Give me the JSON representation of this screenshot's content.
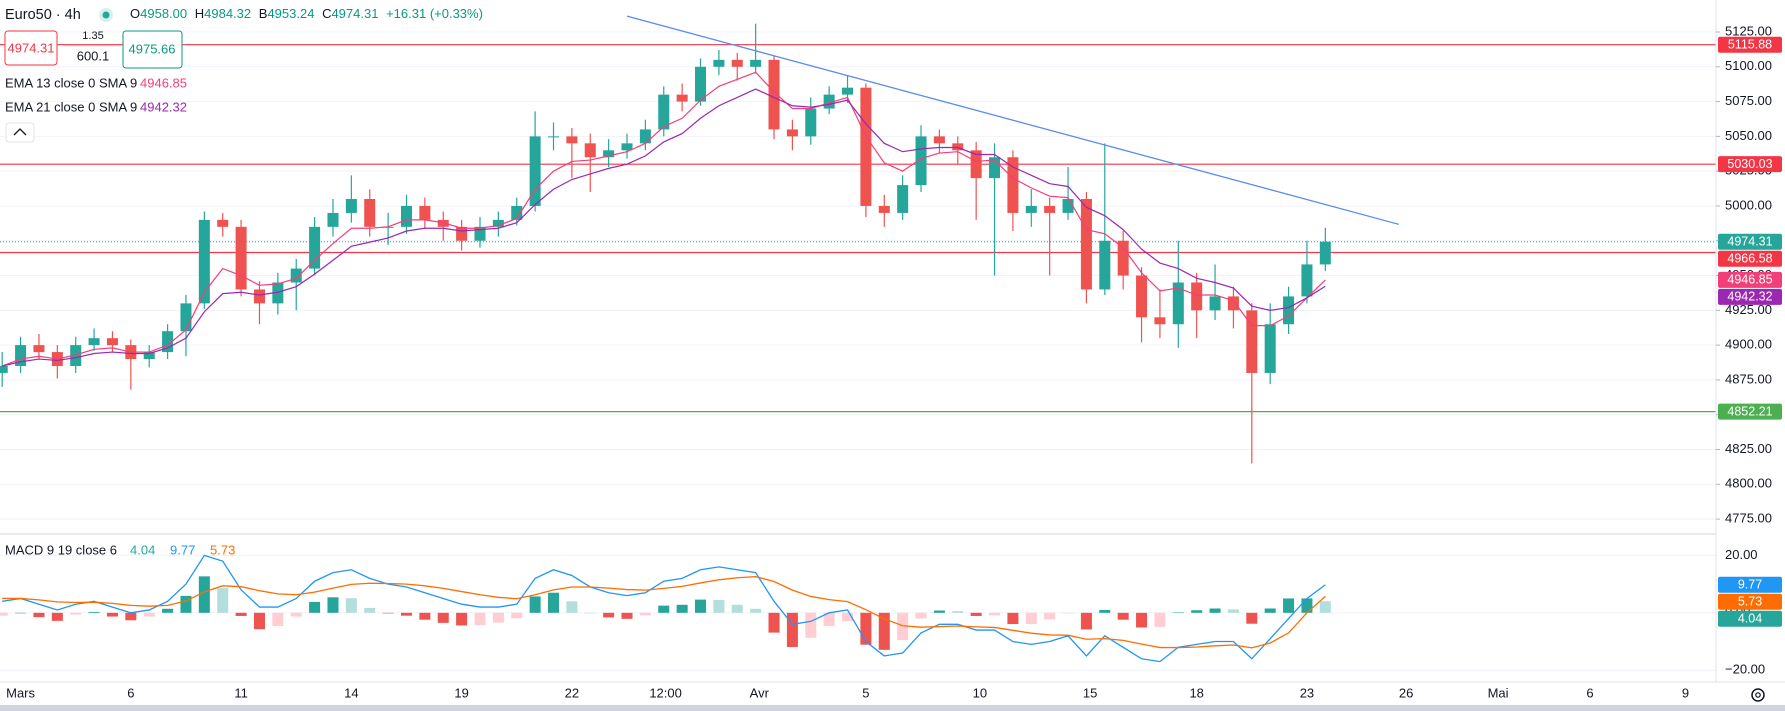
{
  "chart_data": {
    "type": "candlestick",
    "title": "Euro50 · 4h",
    "ohlc_legend": [
      {
        "label": "O",
        "value": "4958.00"
      },
      {
        "label": "H",
        "value": "4984.32"
      },
      {
        "label": "B",
        "value": "4953.24"
      },
      {
        "label": "C",
        "value": "4974.31"
      }
    ],
    "change": "+16.31 (+0.33%)",
    "order_boxes": {
      "sell": "4974.31",
      "spread": "1.35",
      "volume": "600.1",
      "buy": "4975.66"
    },
    "up_color": "#26a69a",
    "down_color": "#ef5350",
    "x": [
      -0.5,
      0,
      0.5,
      1,
      1.5,
      2,
      2.5,
      3,
      3.5,
      4,
      4.5,
      5,
      5.5,
      6,
      6.5,
      7,
      7.5,
      8,
      8.5,
      9,
      9.5,
      10,
      10.5,
      11,
      11.5,
      12,
      12.5,
      13,
      13.5,
      14,
      14.5,
      15,
      15.5,
      16,
      16.5,
      17,
      17.5,
      18,
      18.5,
      19,
      19.5,
      20,
      20.5,
      21,
      21.5,
      22,
      22.5,
      23,
      23.5,
      24,
      24.5,
      25,
      25.5,
      26,
      26.5,
      27,
      27.5,
      28,
      28.5,
      29,
      29.5,
      30,
      30.5,
      31,
      31.5,
      32,
      32.5,
      33,
      33.5,
      34,
      34.5,
      35,
      35.5
    ],
    "ohlc": [
      [
        4880,
        4895,
        4870,
        4885
      ],
      [
        4885,
        4906,
        4880,
        4900
      ],
      [
        4900,
        4908,
        4890,
        4895
      ],
      [
        4895,
        4900,
        4876,
        4885
      ],
      [
        4885,
        4906,
        4880,
        4900
      ],
      [
        4900,
        4912,
        4896,
        4905
      ],
      [
        4905,
        4910,
        4895,
        4900
      ],
      [
        4900,
        4904,
        4868,
        4890
      ],
      [
        4890,
        4900,
        4884,
        4895
      ],
      [
        4895,
        4915,
        4890,
        4910
      ],
      [
        4910,
        4936,
        4892,
        4930
      ],
      [
        4930,
        4996,
        4926,
        4990
      ],
      [
        4990,
        4995,
        4978,
        4985
      ],
      [
        4985,
        4990,
        4935,
        4940
      ],
      [
        4940,
        4946,
        4915,
        4930
      ],
      [
        4930,
        4952,
        4922,
        4945
      ],
      [
        4945,
        4962,
        4925,
        4955
      ],
      [
        4955,
        4992,
        4950,
        4985
      ],
      [
        4985,
        5005,
        4978,
        4995
      ],
      [
        4995,
        5022,
        4988,
        5005
      ],
      [
        5005,
        5012,
        4978,
        4985
      ],
      [
        4985,
        4995,
        4972,
        4985
      ],
      [
        4985,
        5008,
        4980,
        5000
      ],
      [
        5000,
        5006,
        4984,
        4990
      ],
      [
        4990,
        4996,
        4975,
        4985
      ],
      [
        4985,
        4990,
        4968,
        4975
      ],
      [
        4975,
        4992,
        4970,
        4985
      ],
      [
        4985,
        4996,
        4978,
        4990
      ],
      [
        4990,
        5006,
        4986,
        5000
      ],
      [
        5000,
        5068,
        4996,
        5050
      ],
      [
        5050,
        5060,
        5040,
        5050
      ],
      [
        5050,
        5056,
        5020,
        5045
      ],
      [
        5045,
        5052,
        5010,
        5035
      ],
      [
        5035,
        5048,
        5028,
        5040
      ],
      [
        5040,
        5052,
        5034,
        5045
      ],
      [
        5045,
        5062,
        5040,
        5055
      ],
      [
        5055,
        5086,
        5050,
        5080
      ],
      [
        5080,
        5088,
        5068,
        5075
      ],
      [
        5075,
        5106,
        5072,
        5100
      ],
      [
        5100,
        5112,
        5094,
        5105
      ],
      [
        5105,
        5110,
        5090,
        5100
      ],
      [
        5100,
        5131,
        5096,
        5105
      ],
      [
        5105,
        5108,
        5048,
        5055
      ],
      [
        5055,
        5062,
        5040,
        5050
      ],
      [
        5050,
        5078,
        5044,
        5070
      ],
      [
        5070,
        5086,
        5066,
        5080
      ],
      [
        5080,
        5094,
        5074,
        5085
      ],
      [
        5085,
        5088,
        4992,
        5000
      ],
      [
        5000,
        5008,
        4985,
        4995
      ],
      [
        4995,
        5022,
        4990,
        5015
      ],
      [
        5015,
        5058,
        5010,
        5050
      ],
      [
        5050,
        5055,
        5038,
        5045
      ],
      [
        5045,
        5050,
        5030,
        5040
      ],
      [
        5040,
        5046,
        4990,
        5020
      ],
      [
        5020,
        5045,
        4950,
        5035
      ],
      [
        5035,
        5040,
        4982,
        4995
      ],
      [
        4995,
        5012,
        4985,
        5000
      ],
      [
        5000,
        5006,
        4950,
        4995
      ],
      [
        4995,
        5028,
        4990,
        5005
      ],
      [
        5005,
        5010,
        4930,
        4940
      ],
      [
        4940,
        5045,
        4936,
        4975
      ],
      [
        4975,
        4982,
        4940,
        4950
      ],
      [
        4950,
        4956,
        4902,
        4920
      ],
      [
        4920,
        4940,
        4905,
        4915
      ],
      [
        4915,
        4975,
        4898,
        4945
      ],
      [
        4945,
        4952,
        4905,
        4925
      ],
      [
        4925,
        4958,
        4918,
        4935
      ],
      [
        4935,
        4942,
        4912,
        4925
      ],
      [
        4925,
        4930,
        4815,
        4880
      ],
      [
        4880,
        4930,
        4872,
        4915
      ],
      [
        4915,
        4942,
        4908,
        4935
      ],
      [
        4935,
        4975,
        4930,
        4958
      ],
      [
        4958,
        4984.32,
        4953.24,
        4974.31
      ]
    ],
    "series": [
      {
        "name": "EMA 13 close 0 SMA 9",
        "color": "#f23f7a",
        "values": [
          4885,
          4890,
          4892,
          4890,
          4893,
          4897,
          4898,
          4895,
          4895,
          4900,
          4911,
          4938,
          4955,
          4950,
          4943,
          4944,
          4948,
          4961,
          4973,
          4984,
          4984,
          4985,
          4990,
          4990,
          4988,
          4984,
          4984,
          4986,
          4991,
          5012,
          5025,
          5032,
          5033,
          5036,
          5039,
          5045,
          5057,
          5063,
          5076,
          5086,
          5091,
          5096,
          5082,
          5070,
          5070,
          5074,
          5078,
          5050,
          5031,
          5025,
          5034,
          5038,
          5039,
          5032,
          5033,
          5020,
          5013,
          5007,
          5006,
          4983,
          4980,
          4970,
          4952,
          4939,
          4941,
          4936,
          4936,
          4932,
          4914,
          4914,
          4921,
          4934,
          4946.85
        ]
      },
      {
        "name": "EMA 21 close 0 SMA 9",
        "color": "#9c27b0",
        "values": [
          4885,
          4888,
          4890,
          4889,
          4891,
          4894,
          4895,
          4894,
          4894,
          4898,
          4905,
          4924,
          4937,
          4938,
          4936,
          4938,
          4942,
          4951,
          4961,
          4971,
          4974,
          4977,
          4982,
          4984,
          4984,
          4982,
          4983,
          4984,
          4988,
          5001,
          5012,
          5019,
          5023,
          5027,
          5030,
          5036,
          5046,
          5052,
          5063,
          5072,
          5078,
          5084,
          5078,
          5072,
          5071,
          5073,
          5076,
          5059,
          5045,
          5039,
          5041,
          5042,
          5042,
          5037,
          5037,
          5028,
          5022,
          5016,
          5014,
          4999,
          4993,
          4983,
          4969,
          4959,
          4955,
          4948,
          4945,
          4941,
          4928,
          4925,
          4927,
          4934,
          4942.32
        ]
      }
    ],
    "hlines": [
      {
        "value": 5115.88,
        "color": "#f23645"
      },
      {
        "value": 5030.03,
        "color": "#f23645"
      },
      {
        "value": 4966.58,
        "color": "#f23645"
      },
      {
        "value": 4852.21,
        "color": "#4caf50"
      }
    ],
    "trendline": {
      "x": [
        16.5,
        37.5
      ],
      "y": [
        5136.4,
        4986.8
      ],
      "color": "#5b8def"
    },
    "xlim": [
      -0.56,
      46.13
    ],
    "xticks": [
      {
        "value": 0,
        "label": "Mars"
      },
      {
        "value": 3,
        "label": "6"
      },
      {
        "value": 6,
        "label": "11"
      },
      {
        "value": 9,
        "label": "14"
      },
      {
        "value": 12,
        "label": "19"
      },
      {
        "value": 15,
        "label": "22"
      },
      {
        "value": 17.55,
        "label": "12:00"
      },
      {
        "value": 20.1,
        "label": "Avr"
      },
      {
        "value": 23,
        "label": "5"
      },
      {
        "value": 26.1,
        "label": "10"
      },
      {
        "value": 29.1,
        "label": "15"
      },
      {
        "value": 32,
        "label": "18"
      },
      {
        "value": 35,
        "label": "23"
      },
      {
        "value": 37.7,
        "label": "26"
      },
      {
        "value": 40.2,
        "label": "Mai"
      },
      {
        "value": 42.7,
        "label": "6"
      },
      {
        "value": 45.3,
        "label": "9"
      }
    ],
    "ylim": [
      4765,
      5148
    ],
    "yticks": [
      {
        "value": 4775,
        "label": "4775.00"
      },
      {
        "value": 4800,
        "label": "4800.00"
      },
      {
        "value": 4825,
        "label": "4825.00"
      },
      {
        "value": 4850,
        "label": "4850.00"
      },
      {
        "value": 4875,
        "label": "4875.00"
      },
      {
        "value": 4900,
        "label": "4900.00"
      },
      {
        "value": 4925,
        "label": "4925.00"
      },
      {
        "value": 4950,
        "label": "4950.00"
      },
      {
        "value": 4975,
        "label": "4975.00"
      },
      {
        "value": 5000,
        "label": "5000.00"
      },
      {
        "value": 5025,
        "label": "5025.00"
      },
      {
        "value": 5050,
        "label": "5050.00"
      },
      {
        "value": 5075,
        "label": "5075.00"
      },
      {
        "value": 5100,
        "label": "5100.00"
      },
      {
        "value": 5125,
        "label": "5125.00"
      }
    ],
    "grid": true,
    "macd": {
      "name": "MACD 9 19 close 6",
      "ylim": [
        -23.4,
        27.1
      ],
      "yticks": [
        {
          "value": 20,
          "label": "20.00"
        },
        {
          "value": 0,
          "label": "0.00"
        },
        {
          "value": -20,
          "label": "−20.00"
        }
      ],
      "hist_colors": [
        "#26a69a",
        "#b2dfdb",
        "#ffcdd2",
        "#ef5350"
      ],
      "histogram": [
        -1,
        0,
        -1.5,
        -2.8,
        -0.6,
        0.3,
        -1.3,
        -2.6,
        -1.3,
        1.4,
        5.9,
        12.7,
        8.6,
        -1.1,
        -5.7,
        -4.6,
        -1.3,
        3.8,
        5.4,
        5.1,
        1.7,
        -0.2,
        -1,
        -2.4,
        -3.5,
        -4.4,
        -4.3,
        -3.4,
        -1.9,
        5.7,
        7,
        4,
        0,
        -1.6,
        -2.1,
        -0.9,
        2.5,
        2.8,
        4.6,
        4.5,
        2.8,
        1.4,
        -6.9,
        -11.9,
        -8.7,
        -4.6,
        -2.9,
        -11.1,
        -12.9,
        -9.5,
        -2,
        0.8,
        0.6,
        -1.1,
        -0.9,
        -3.9,
        -3.9,
        -2.3,
        -0.2,
        -5.8,
        1,
        -2.4,
        -5.1,
        -4.9,
        0.1,
        0.9,
        1.5,
        1.2,
        -3.8,
        1.5,
        5,
        5,
        4.04
      ],
      "macd_color": "#2196f3",
      "macd": [
        4,
        5,
        3,
        1,
        3,
        4,
        2,
        0,
        1,
        4,
        10,
        20,
        18,
        8,
        2,
        2,
        5,
        11,
        14,
        15,
        12,
        10,
        9,
        7,
        5,
        3,
        2,
        2,
        3,
        12,
        15,
        13,
        9,
        7,
        6,
        7,
        11,
        12,
        15,
        16,
        15,
        14,
        4,
        -4,
        -3,
        0,
        1,
        -10,
        -15,
        -14,
        -7,
        -4,
        -4,
        -6,
        -6,
        -10,
        -11,
        -10,
        -8,
        -15,
        -8,
        -12,
        -16,
        -17,
        -12,
        -11,
        -10,
        -10,
        -16,
        -9,
        -2,
        5,
        9.77
      ],
      "signal_color": "#ff6d00",
      "signal": [
        5,
        5,
        4.5,
        3.8,
        3.6,
        3.7,
        3.3,
        2.6,
        2.3,
        2.6,
        4.1,
        7.3,
        9.4,
        9.1,
        7.7,
        6.6,
        6.3,
        7.2,
        8.6,
        9.9,
        10.3,
        10.2,
        10,
        9.4,
        8.5,
        7.4,
        6.3,
        5.4,
        4.9,
        6.3,
        8,
        9,
        9,
        8.6,
        8.1,
        7.9,
        8.5,
        9.2,
        10.4,
        11.5,
        12.2,
        12.6,
        10.9,
        7.9,
        5.7,
        4.6,
        3.9,
        1.1,
        -2.1,
        -4.5,
        -5,
        -4.8,
        -4.6,
        -4.9,
        -5.1,
        -6.1,
        -7.1,
        -7.7,
        -7.8,
        -9.2,
        -9,
        -9.6,
        -10.9,
        -12.1,
        -12.1,
        -11.9,
        -11.5,
        -11.2,
        -12.2,
        -10.5,
        -7,
        0,
        5.73
      ]
    }
  }
}
